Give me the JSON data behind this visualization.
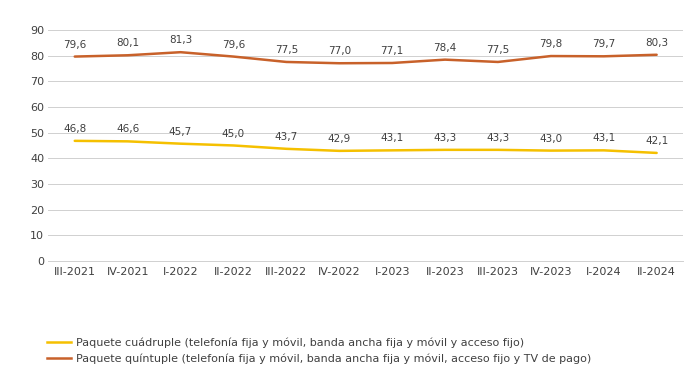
{
  "x_labels": [
    "III-2021",
    "IV-2021",
    "I-2022",
    "II-2022",
    "III-2022",
    "IV-2022",
    "I-2023",
    "II-2023",
    "III-2023",
    "IV-2023",
    "I-2024",
    "II-2024"
  ],
  "quadruple": [
    46.8,
    46.6,
    45.7,
    45.0,
    43.7,
    42.9,
    43.1,
    43.3,
    43.3,
    43.0,
    43.1,
    42.1
  ],
  "quintuple": [
    79.6,
    80.1,
    81.3,
    79.6,
    77.5,
    77.0,
    77.1,
    78.4,
    77.5,
    79.8,
    79.7,
    80.3
  ],
  "quadruple_color": "#F5C000",
  "quintuple_color": "#C8612A",
  "background_color": "#FFFFFF",
  "grid_color": "#D0D0D0",
  "ylim": [
    0,
    90
  ],
  "yticks": [
    0,
    10,
    20,
    30,
    40,
    50,
    60,
    70,
    80,
    90
  ],
  "legend_quadruple": "Paquete cuádruple (telefonía fija y móvil, banda ancha fija y móvil y acceso fijo)",
  "legend_quintuple": "Paquete quíntuple (telefonía fija y móvil, banda ancha fija y móvil, acceso fijo y TV de pago)",
  "line_width": 1.8,
  "annotation_fontsize": 7.5,
  "tick_fontsize": 8.0,
  "legend_fontsize": 8.0,
  "text_color": "#404040"
}
